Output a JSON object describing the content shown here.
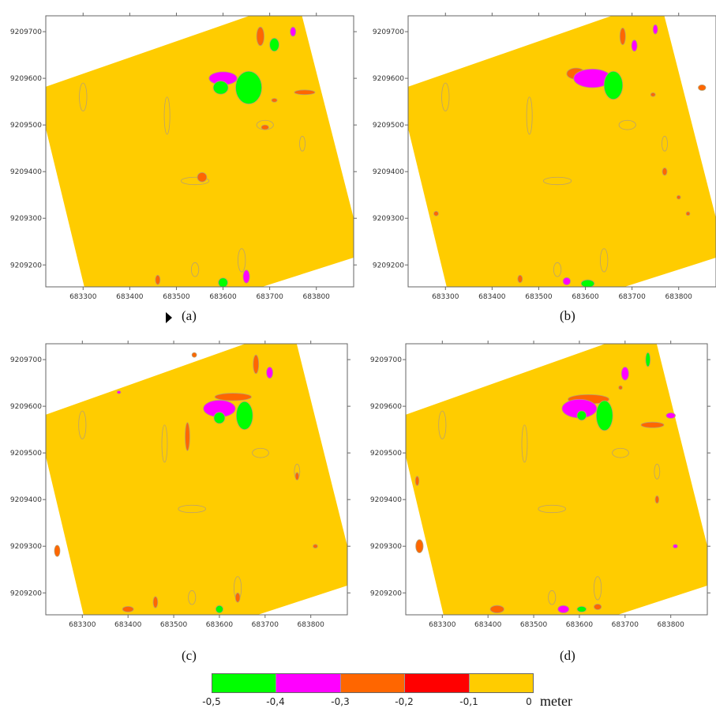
{
  "colors": {
    "green": "#00ff00",
    "magenta": "#ff00ff",
    "orange": "#ff6600",
    "red": "#ff0000",
    "yellow": "#ffcc00",
    "contour": "#b8a070",
    "frame": "#666666"
  },
  "legend": {
    "bins": [
      {
        "from": -0.5,
        "to": -0.4,
        "color": "#00ff00"
      },
      {
        "from": -0.4,
        "to": -0.3,
        "color": "#ff00ff"
      },
      {
        "from": -0.3,
        "to": -0.2,
        "color": "#ff6600"
      },
      {
        "from": -0.2,
        "to": -0.1,
        "color": "#ff0000"
      },
      {
        "from": -0.1,
        "to": 0,
        "color": "#ffcc00"
      }
    ],
    "labels": [
      "-0,5",
      "-0,4",
      "-0,3",
      "-0,2",
      "-0,1",
      "0"
    ],
    "unit": "meter"
  },
  "chart_data": [
    {
      "type": "contour",
      "caption": "(a)",
      "xlim": [
        683220,
        683880
      ],
      "ylim": [
        9209153,
        9209734
      ],
      "xticks": [
        "683300",
        "683400",
        "683500",
        "683600",
        "683700",
        "683800"
      ],
      "yticks": [
        "9209200",
        "9209300",
        "9209400",
        "9209500",
        "9209600",
        "9209700"
      ],
      "background_value": "0 to -0,1",
      "anomalies": [
        {
          "x": 683655,
          "y": 9209580,
          "rx": 28,
          "ry": 35,
          "level": "green"
        },
        {
          "x": 683600,
          "y": 9209600,
          "rx": 30,
          "ry": 14,
          "level": "magenta"
        },
        {
          "x": 683595,
          "y": 9209580,
          "rx": 16,
          "ry": 14,
          "level": "green"
        },
        {
          "x": 683710,
          "y": 9209672,
          "rx": 10,
          "ry": 14,
          "level": "green"
        },
        {
          "x": 683750,
          "y": 9209700,
          "rx": 6,
          "ry": 10,
          "level": "magenta"
        },
        {
          "x": 683680,
          "y": 9209690,
          "rx": 8,
          "ry": 20,
          "level": "orange"
        },
        {
          "x": 683775,
          "y": 9209570,
          "rx": 22,
          "ry": 5,
          "level": "orange"
        },
        {
          "x": 683710,
          "y": 9209553,
          "rx": 6,
          "ry": 4,
          "level": "orange"
        },
        {
          "x": 683555,
          "y": 9209388,
          "rx": 10,
          "ry": 10,
          "level": "orange"
        },
        {
          "x": 683690,
          "y": 9209495,
          "rx": 8,
          "ry": 5,
          "level": "orange"
        },
        {
          "x": 683600,
          "y": 9209162,
          "rx": 10,
          "ry": 10,
          "level": "green"
        },
        {
          "x": 683650,
          "y": 9209175,
          "rx": 7,
          "ry": 14,
          "level": "magenta"
        },
        {
          "x": 683460,
          "y": 9209168,
          "rx": 5,
          "ry": 10,
          "level": "orange"
        }
      ]
    },
    {
      "type": "contour",
      "caption": "(b)",
      "xlim": [
        683220,
        683880
      ],
      "ylim": [
        9209153,
        9209734
      ],
      "xticks": [
        "683300",
        "683400",
        "683500",
        "683600",
        "683700",
        "683800"
      ],
      "yticks": [
        "9209200",
        "9209300",
        "9209400",
        "9209500",
        "9209600",
        "9209700"
      ],
      "background_value": "0 to -0,1",
      "anomalies": [
        {
          "x": 683660,
          "y": 9209585,
          "rx": 20,
          "ry": 30,
          "level": "green"
        },
        {
          "x": 683615,
          "y": 9209600,
          "rx": 40,
          "ry": 20,
          "level": "magenta"
        },
        {
          "x": 683580,
          "y": 9209610,
          "rx": 20,
          "ry": 12,
          "level": "orange"
        },
        {
          "x": 683705,
          "y": 9209670,
          "rx": 6,
          "ry": 12,
          "level": "magenta"
        },
        {
          "x": 683750,
          "y": 9209705,
          "rx": 5,
          "ry": 10,
          "level": "magenta"
        },
        {
          "x": 683680,
          "y": 9209690,
          "rx": 6,
          "ry": 18,
          "level": "orange"
        },
        {
          "x": 683850,
          "y": 9209580,
          "rx": 8,
          "ry": 6,
          "level": "orange"
        },
        {
          "x": 683745,
          "y": 9209565,
          "rx": 5,
          "ry": 4,
          "level": "orange"
        },
        {
          "x": 683770,
          "y": 9209400,
          "rx": 5,
          "ry": 8,
          "level": "orange"
        },
        {
          "x": 683800,
          "y": 9209345,
          "rx": 4,
          "ry": 4,
          "level": "orange"
        },
        {
          "x": 683820,
          "y": 9209310,
          "rx": 4,
          "ry": 4,
          "level": "orange"
        },
        {
          "x": 683560,
          "y": 9209165,
          "rx": 8,
          "ry": 8,
          "level": "magenta"
        },
        {
          "x": 683605,
          "y": 9209160,
          "rx": 14,
          "ry": 8,
          "level": "green"
        },
        {
          "x": 683460,
          "y": 9209170,
          "rx": 5,
          "ry": 8,
          "level": "orange"
        },
        {
          "x": 683280,
          "y": 9209310,
          "rx": 5,
          "ry": 5,
          "level": "orange"
        }
      ]
    },
    {
      "type": "contour",
      "caption": "(c)",
      "xlim": [
        683220,
        683880
      ],
      "ylim": [
        9209153,
        9209734
      ],
      "xticks": [
        "683300",
        "683400",
        "683500",
        "683600",
        "683700",
        "683800"
      ],
      "yticks": [
        "9209200",
        "9209300",
        "9209400",
        "9209500",
        "9209600",
        "9209700"
      ],
      "background_value": "0 to -0,1",
      "anomalies": [
        {
          "x": 683655,
          "y": 9209580,
          "rx": 18,
          "ry": 30,
          "level": "green"
        },
        {
          "x": 683600,
          "y": 9209595,
          "rx": 35,
          "ry": 18,
          "level": "magenta"
        },
        {
          "x": 683600,
          "y": 9209575,
          "rx": 12,
          "ry": 12,
          "level": "green"
        },
        {
          "x": 683630,
          "y": 9209620,
          "rx": 40,
          "ry": 8,
          "level": "orange"
        },
        {
          "x": 683710,
          "y": 9209672,
          "rx": 7,
          "ry": 12,
          "level": "magenta"
        },
        {
          "x": 683680,
          "y": 9209690,
          "rx": 6,
          "ry": 20,
          "level": "orange"
        },
        {
          "x": 683530,
          "y": 9209535,
          "rx": 5,
          "ry": 30,
          "level": "orange"
        },
        {
          "x": 683380,
          "y": 9209630,
          "rx": 4,
          "ry": 3,
          "level": "magenta"
        },
        {
          "x": 683545,
          "y": 9209710,
          "rx": 5,
          "ry": 5,
          "level": "orange"
        },
        {
          "x": 683770,
          "y": 9209450,
          "rx": 4,
          "ry": 8,
          "level": "orange"
        },
        {
          "x": 683810,
          "y": 9209300,
          "rx": 5,
          "ry": 4,
          "level": "orange"
        },
        {
          "x": 683245,
          "y": 9209290,
          "rx": 6,
          "ry": 12,
          "level": "orange"
        },
        {
          "x": 683400,
          "y": 9209165,
          "rx": 12,
          "ry": 6,
          "level": "orange"
        },
        {
          "x": 683460,
          "y": 9209180,
          "rx": 5,
          "ry": 12,
          "level": "orange"
        },
        {
          "x": 683600,
          "y": 9209165,
          "rx": 8,
          "ry": 8,
          "level": "green"
        },
        {
          "x": 683640,
          "y": 9209190,
          "rx": 5,
          "ry": 10,
          "level": "orange"
        }
      ]
    },
    {
      "type": "contour",
      "caption": "(d)",
      "xlim": [
        683220,
        683880
      ],
      "ylim": [
        9209153,
        9209734
      ],
      "xticks": [
        "683300",
        "683400",
        "683500",
        "683600",
        "683700",
        "683800"
      ],
      "yticks": [
        "9209200",
        "9209300",
        "9209400",
        "9209500",
        "9209600",
        "9209700"
      ],
      "background_value": "0 to -0,1",
      "anomalies": [
        {
          "x": 683655,
          "y": 9209580,
          "rx": 18,
          "ry": 32,
          "level": "green"
        },
        {
          "x": 683600,
          "y": 9209595,
          "rx": 38,
          "ry": 20,
          "level": "magenta"
        },
        {
          "x": 683605,
          "y": 9209580,
          "rx": 10,
          "ry": 10,
          "level": "green"
        },
        {
          "x": 683620,
          "y": 9209615,
          "rx": 45,
          "ry": 10,
          "level": "orange"
        },
        {
          "x": 683700,
          "y": 9209670,
          "rx": 8,
          "ry": 14,
          "level": "magenta"
        },
        {
          "x": 683750,
          "y": 9209700,
          "rx": 5,
          "ry": 15,
          "level": "green"
        },
        {
          "x": 683760,
          "y": 9209560,
          "rx": 25,
          "ry": 6,
          "level": "orange"
        },
        {
          "x": 683800,
          "y": 9209580,
          "rx": 10,
          "ry": 6,
          "level": "magenta"
        },
        {
          "x": 683690,
          "y": 9209640,
          "rx": 4,
          "ry": 4,
          "level": "orange"
        },
        {
          "x": 683245,
          "y": 9209440,
          "rx": 4,
          "ry": 10,
          "level": "orange"
        },
        {
          "x": 683250,
          "y": 9209300,
          "rx": 8,
          "ry": 14,
          "level": "orange"
        },
        {
          "x": 683420,
          "y": 9209165,
          "rx": 15,
          "ry": 8,
          "level": "orange"
        },
        {
          "x": 683565,
          "y": 9209165,
          "rx": 12,
          "ry": 8,
          "level": "magenta"
        },
        {
          "x": 683605,
          "y": 9209165,
          "rx": 10,
          "ry": 6,
          "level": "green"
        },
        {
          "x": 683640,
          "y": 9209170,
          "rx": 8,
          "ry": 6,
          "level": "orange"
        },
        {
          "x": 683770,
          "y": 9209400,
          "rx": 4,
          "ry": 8,
          "level": "orange"
        },
        {
          "x": 683810,
          "y": 9209300,
          "rx": 5,
          "ry": 4,
          "level": "magenta"
        }
      ]
    }
  ]
}
